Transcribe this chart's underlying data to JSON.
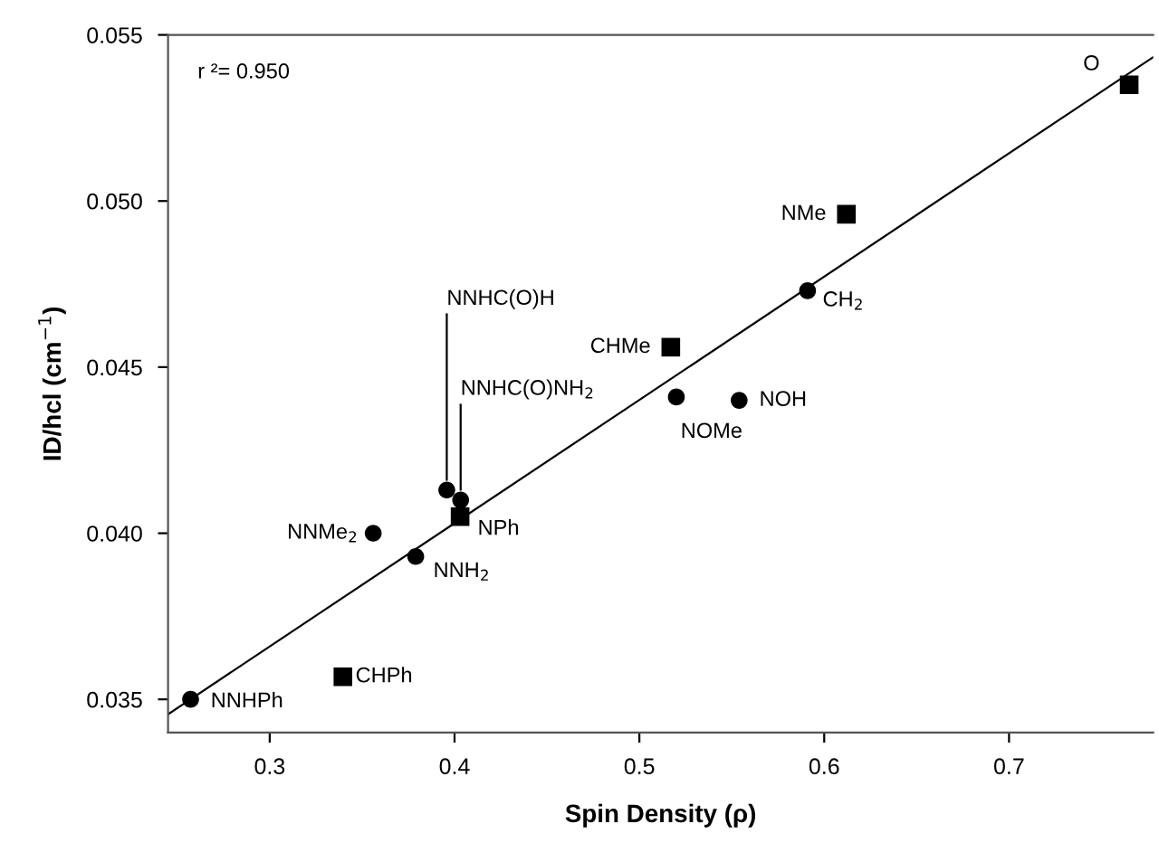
{
  "chart_data": {
    "type": "scatter",
    "xlabel": "Spin Density (ρ)",
    "ylabel": "ID/hcl (cm$^{−1}$)",
    "xlim": [
      0.245,
      0.778
    ],
    "ylim": [
      0.034,
      0.055
    ],
    "xticks": [
      0.3,
      0.4,
      0.5,
      0.6,
      0.7
    ],
    "yticks": [
      {
        "value": 0.035,
        "label": "0.035"
      },
      {
        "value": 0.04,
        "label": "0.040"
      },
      {
        "value": 0.045,
        "label": "0.045"
      },
      {
        "value": 0.05,
        "label": "0.050"
      },
      {
        "value": 0.055,
        "label": "0.055"
      }
    ],
    "grid": false,
    "legend": false,
    "series": [
      {
        "marker": "circle",
        "color": "#000000",
        "x": [
          0.2572,
          0.356,
          0.379,
          0.3958,
          0.4033,
          0.52,
          0.554,
          0.591
        ],
        "values": [
          0.035,
          0.04,
          0.0393,
          0.0413,
          0.041,
          0.0441,
          0.044,
          0.0473
        ]
      },
      {
        "marker": "square",
        "color": "#000000",
        "x": [
          0.3396,
          0.403,
          0.517,
          0.612,
          0.765
        ],
        "values": [
          0.03568,
          0.0405,
          0.0456,
          0.0496,
          0.0535
        ]
      },
      {
        "type": "line",
        "line_style": "solid",
        "marker": "none",
        "color": "#000000",
        "x": [
          0.245,
          0.778
        ],
        "values": [
          0.03455,
          0.05433
        ]
      }
    ],
    "annotations": [
      "r ²= 0.950",
      {
        "text": "NNHPh",
        "x": 0.2572,
        "y": 0.035
      },
      {
        "text": "CHPh",
        "x": 0.3396,
        "y": 0.03568
      },
      {
        "text": "NNMe$_{2}$",
        "x": 0.356,
        "y": 0.04
      },
      {
        "text": "NNH$_{2}$",
        "x": 0.379,
        "y": 0.0393
      },
      {
        "text": "NNHC(O)H",
        "x": 0.3958,
        "y": 0.0413
      },
      {
        "text": "NNHC(O)NH$_{2}$",
        "x": 0.4033,
        "y": 0.041
      },
      {
        "text": "NPh",
        "x": 0.403,
        "y": 0.0405
      },
      {
        "text": "CHMe",
        "x": 0.517,
        "y": 0.0456
      },
      {
        "text": "NOMe",
        "x": 0.52,
        "y": 0.0441
      },
      {
        "text": "NOH",
        "x": 0.554,
        "y": 0.044
      },
      {
        "text": "CH$_{2}$",
        "x": 0.591,
        "y": 0.0473
      },
      {
        "text": "NMe",
        "x": 0.612,
        "y": 0.0496
      },
      {
        "text": "O",
        "x": 0.765,
        "y": 0.0535
      }
    ]
  }
}
